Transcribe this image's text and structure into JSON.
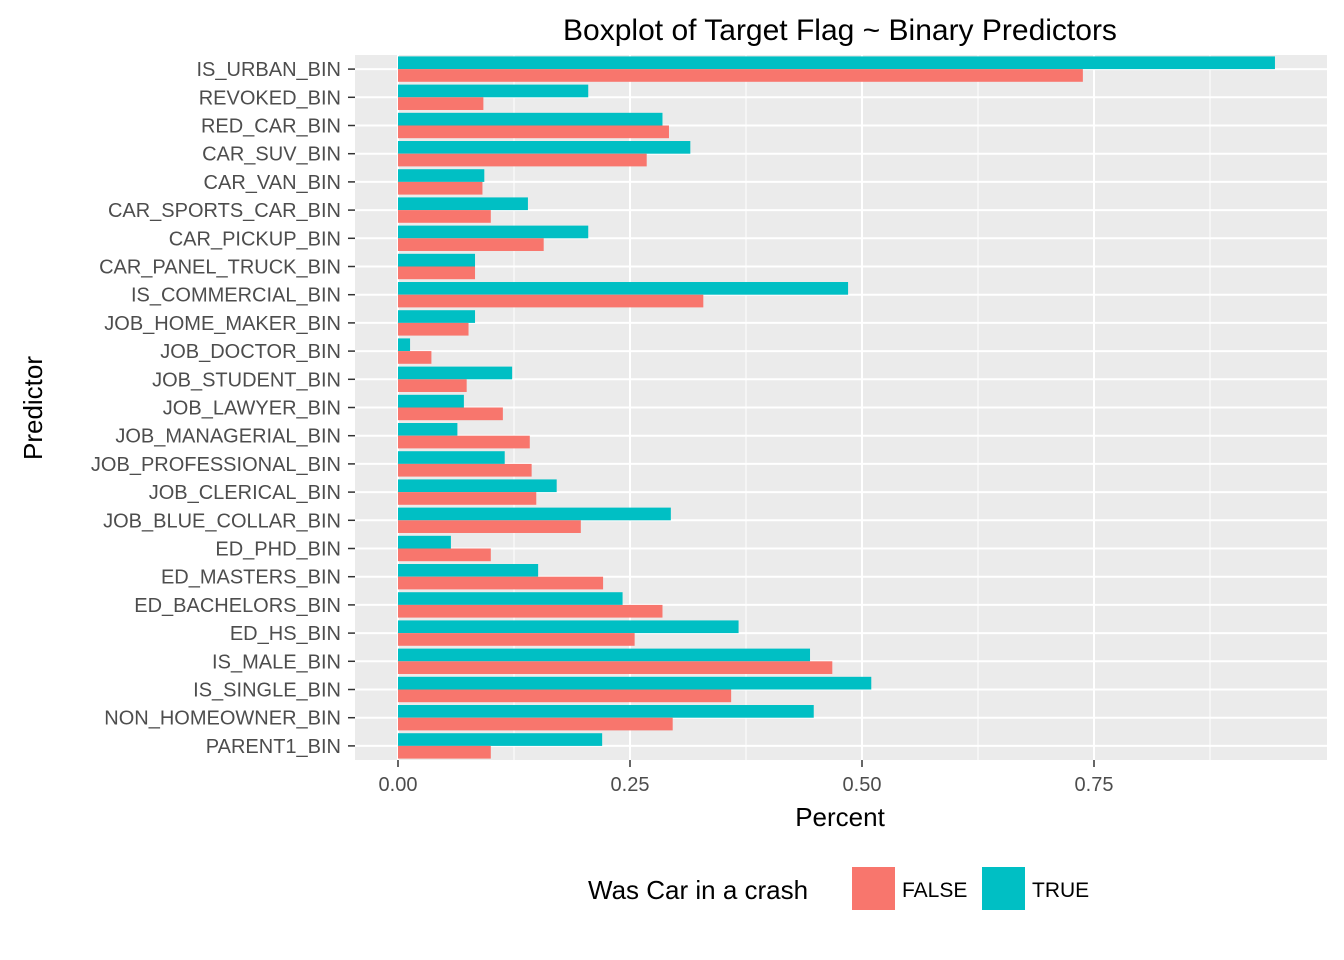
{
  "chart_data": {
    "type": "bar",
    "orientation": "horizontal",
    "title": "Boxplot of Target Flag ~ Binary Predictors",
    "xlabel": "Percent",
    "ylabel": "Predictor",
    "xlim": [
      -0.023,
      0.99
    ],
    "x_ticks": [
      0.0,
      0.25,
      0.5,
      0.75
    ],
    "x_tick_labels": [
      "0.00",
      "0.25",
      "0.50",
      "0.75"
    ],
    "grid": true,
    "legend_title": "Was Car in a crash",
    "legend_position": "bottom",
    "categories": [
      "IS_URBAN_BIN",
      "REVOKED_BIN",
      "RED_CAR_BIN",
      "CAR_SUV_BIN",
      "CAR_VAN_BIN",
      "CAR_SPORTS_CAR_BIN",
      "CAR_PICKUP_BIN",
      "CAR_PANEL_TRUCK_BIN",
      "IS_COMMERCIAL_BIN",
      "JOB_HOME_MAKER_BIN",
      "JOB_DOCTOR_BIN",
      "JOB_STUDENT_BIN",
      "JOB_LAWYER_BIN",
      "JOB_MANAGERIAL_BIN",
      "JOB_PROFESSIONAL_BIN",
      "JOB_CLERICAL_BIN",
      "JOB_BLUE_COLLAR_BIN",
      "ED_PHD_BIN",
      "ED_MASTERS_BIN",
      "ED_BACHELORS_BIN",
      "ED_HS_BIN",
      "IS_MALE_BIN",
      "IS_SINGLE_BIN",
      "NON_HOMEOWNER_BIN",
      "PARENT1_BIN"
    ],
    "series": [
      {
        "name": "TRUE",
        "color": "#00BFC4",
        "values": [
          0.945,
          0.205,
          0.285,
          0.315,
          0.093,
          0.14,
          0.205,
          0.083,
          0.485,
          0.083,
          0.013,
          0.123,
          0.071,
          0.064,
          0.115,
          0.171,
          0.294,
          0.057,
          0.151,
          0.242,
          0.367,
          0.444,
          0.51,
          0.448,
          0.22
        ]
      },
      {
        "name": "FALSE",
        "color": "#F8766D",
        "values": [
          0.738,
          0.092,
          0.292,
          0.268,
          0.091,
          0.1,
          0.157,
          0.083,
          0.329,
          0.076,
          0.036,
          0.074,
          0.113,
          0.142,
          0.144,
          0.149,
          0.197,
          0.1,
          0.221,
          0.285,
          0.255,
          0.468,
          0.359,
          0.296,
          0.1
        ]
      }
    ],
    "legend_order": [
      "FALSE",
      "TRUE"
    ]
  }
}
